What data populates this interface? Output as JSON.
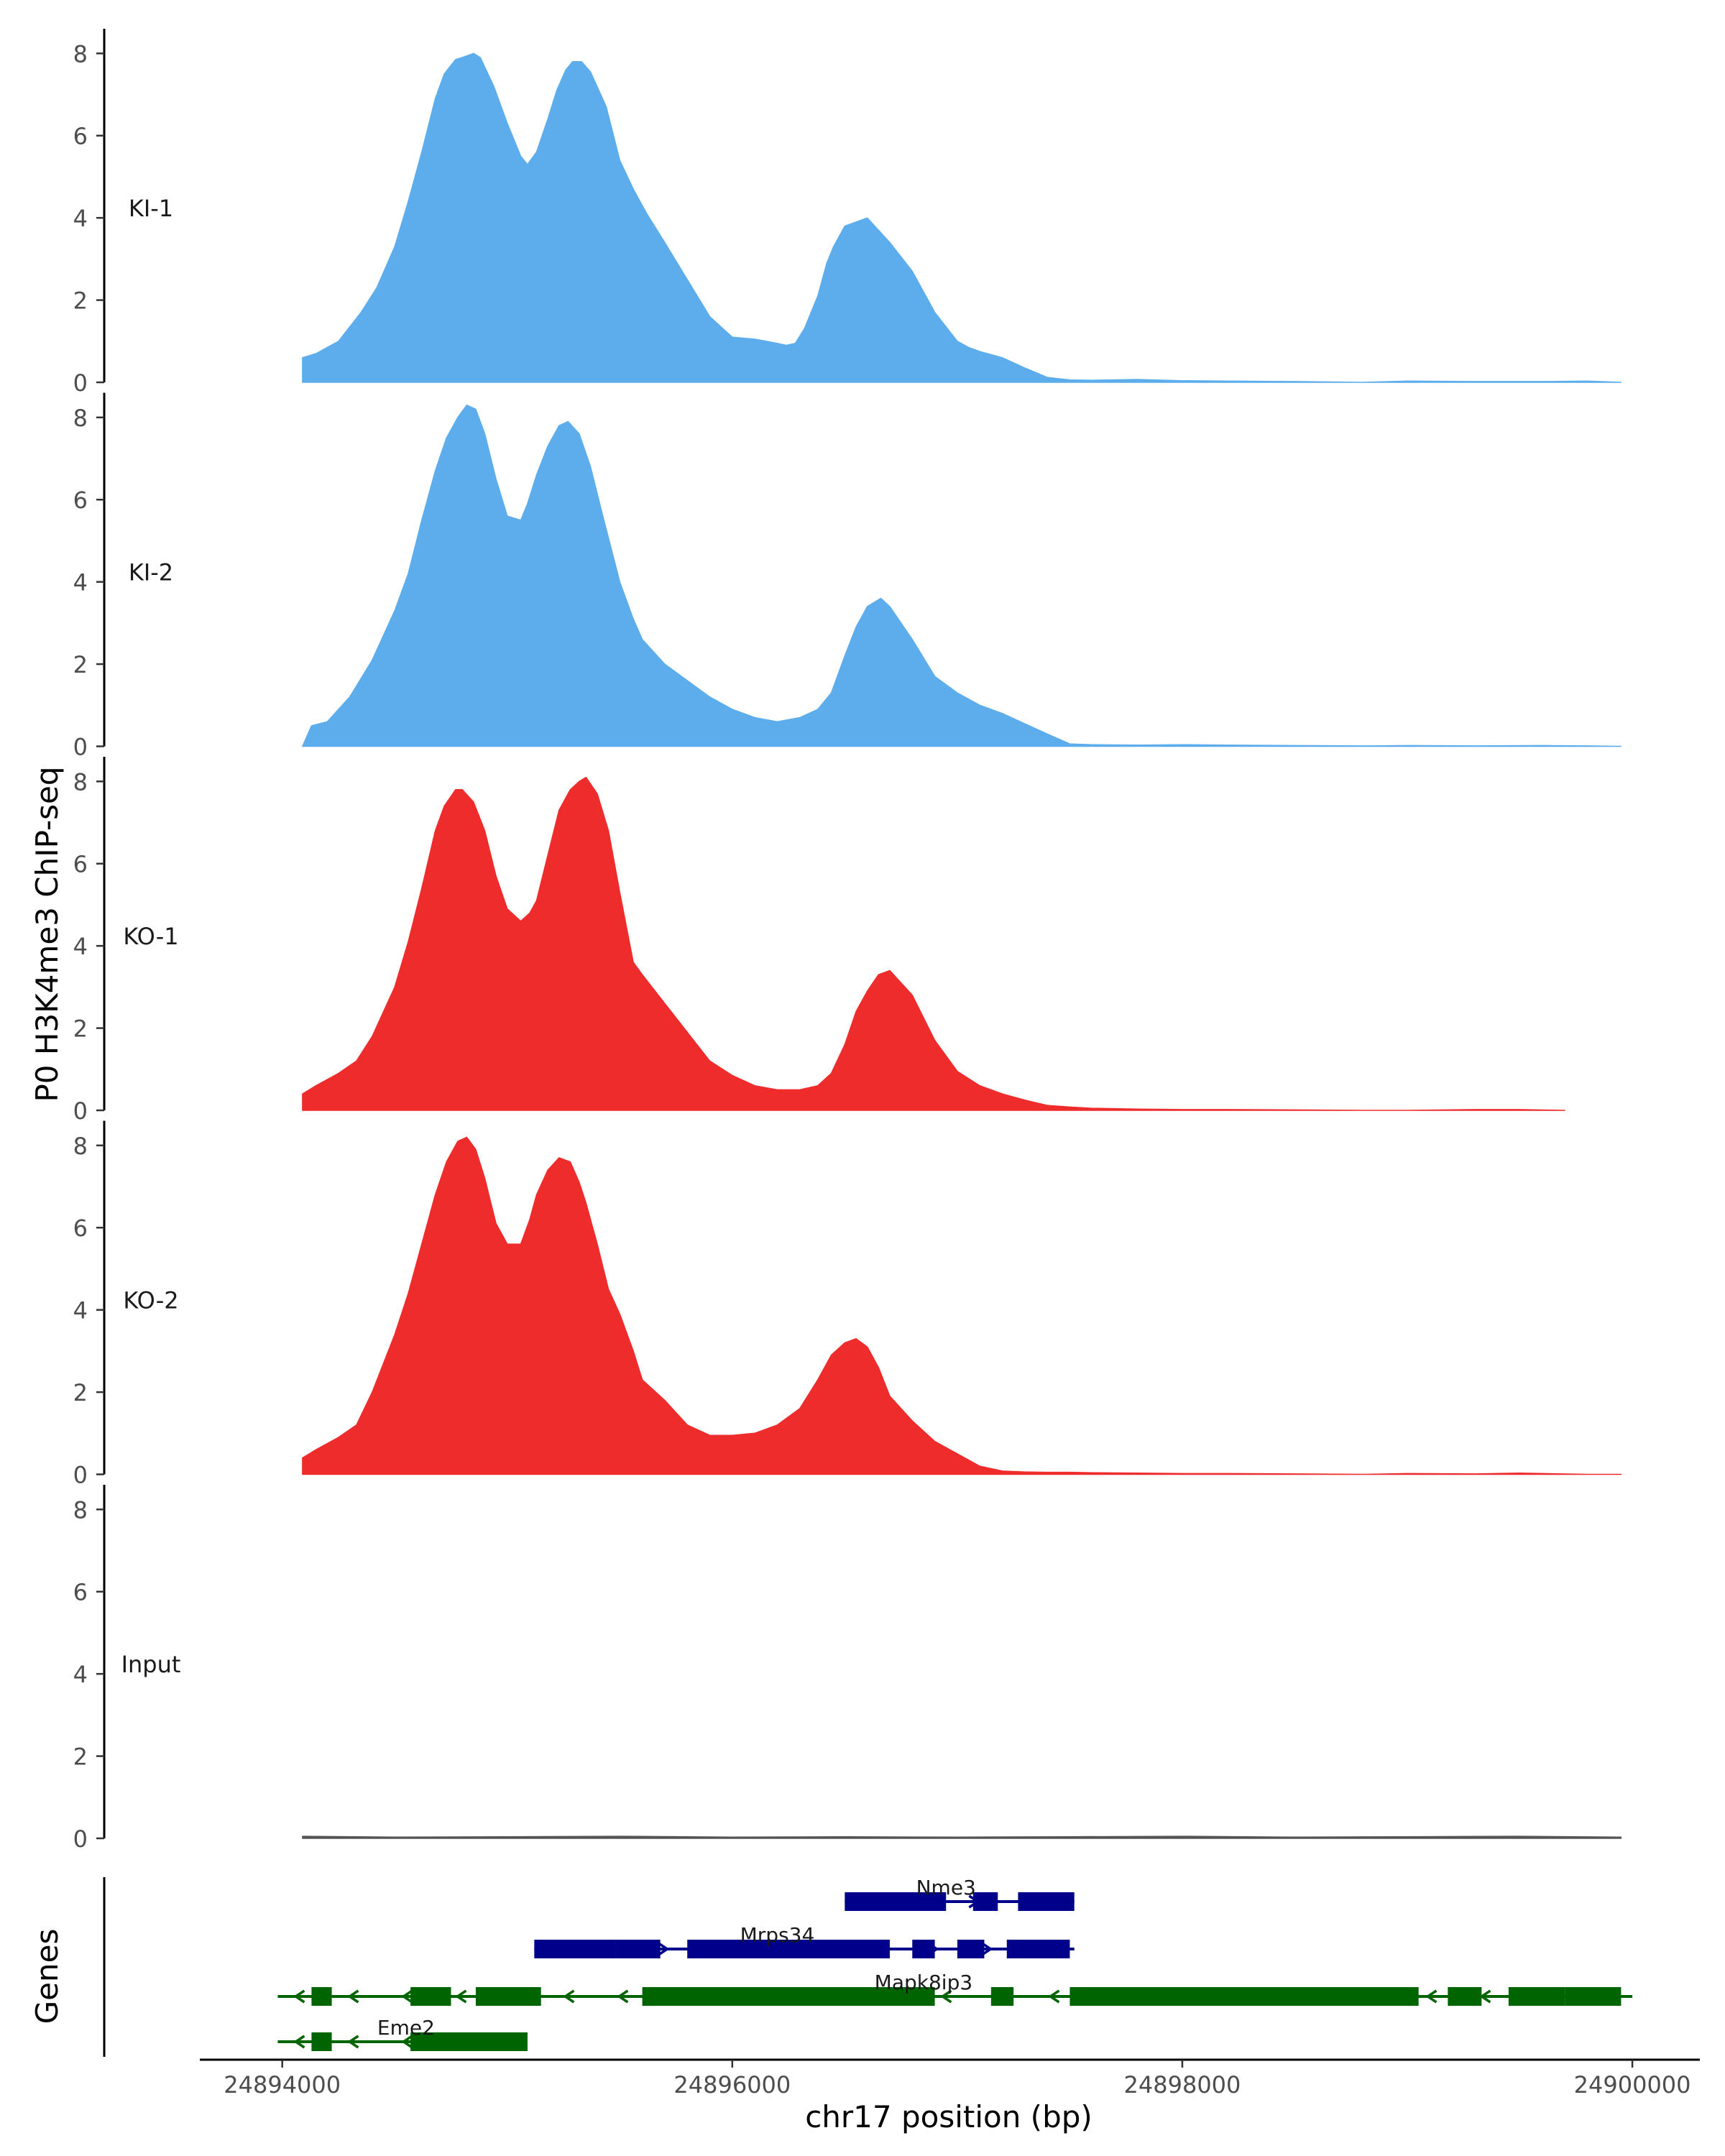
{
  "chart_data": {
    "type": "area",
    "ylabel": "P0 H3K4me3 ChIP-seq",
    "xlabel": "chr17 position (bp)",
    "ylim": [
      0,
      8.6
    ],
    "xlim": [
      24893640,
      24900300
    ],
    "yticks": [
      "0",
      "2",
      "4",
      "6",
      "8"
    ],
    "xticks": [
      {
        "value": 24894000,
        "label": "24894000"
      },
      {
        "value": 24896000,
        "label": "24896000"
      },
      {
        "value": 24898000,
        "label": "24898000"
      },
      {
        "value": 24900000,
        "label": "24900000"
      }
    ],
    "tracks": [
      {
        "name": "KI-1",
        "color": "#5DADEC",
        "x": [
          24894090,
          24894150,
          24894250,
          24894350,
          24894420,
          24894500,
          24894560,
          24894620,
          24894680,
          24894720,
          24894770,
          24894800,
          24894850,
          24894880,
          24894940,
          24895000,
          24895060,
          24895090,
          24895130,
          24895180,
          24895220,
          24895260,
          24895290,
          24895330,
          24895370,
          24895440,
          24895500,
          24895560,
          24895620,
          24895700,
          24895800,
          24895900,
          24896000,
          24896100,
          24896150,
          24896200,
          24896240,
          24896280,
          24896320,
          24896380,
          24896420,
          24896450,
          24896500,
          24896600,
          24896700,
          24896800,
          24896900,
          24897000,
          24897050,
          24897100,
          24897200,
          24897300,
          24897400,
          24897500,
          24897600,
          24897800,
          24898000,
          24898200,
          24898500,
          24898800,
          24899000,
          24899300,
          24899600,
          24899800,
          24899950
        ],
        "values": [
          0.6,
          0.7,
          1.0,
          1.7,
          2.3,
          3.3,
          4.4,
          5.6,
          6.9,
          7.5,
          7.85,
          7.9,
          8.0,
          7.9,
          7.2,
          6.3,
          5.5,
          5.3,
          5.6,
          6.4,
          7.1,
          7.6,
          7.8,
          7.8,
          7.55,
          6.7,
          5.4,
          4.7,
          4.1,
          3.4,
          2.5,
          1.6,
          1.1,
          1.05,
          1.0,
          0.95,
          0.9,
          0.95,
          1.3,
          2.1,
          2.9,
          3.3,
          3.8,
          4.0,
          3.4,
          2.7,
          1.7,
          1.0,
          0.85,
          0.75,
          0.6,
          0.35,
          0.12,
          0.06,
          0.05,
          0.07,
          0.04,
          0.03,
          0.02,
          0.0,
          0.03,
          0.02,
          0.02,
          0.03,
          0.0
        ]
      },
      {
        "name": "KI-2",
        "color": "#5DADEC",
        "x": [
          24894090,
          24894130,
          24894200,
          24894300,
          24894400,
          24894500,
          24894560,
          24894620,
          24894680,
          24894730,
          24894780,
          24894820,
          24894860,
          24894900,
          24894950,
          24895000,
          24895060,
          24895090,
          24895130,
          24895180,
          24895230,
          24895270,
          24895320,
          24895370,
          24895420,
          24895500,
          24895560,
          24895600,
          24895700,
          24895800,
          24895900,
          24896000,
          24896100,
          24896200,
          24896300,
          24896380,
          24896440,
          24896500,
          24896550,
          24896600,
          24896660,
          24896700,
          24896800,
          24896900,
          24897000,
          24897100,
          24897200,
          24897300,
          24897400,
          24897500,
          24897600,
          24897800,
          24898000,
          24898200,
          24898500,
          24898800,
          24899000,
          24899300,
          24899600,
          24899800,
          24899950
        ],
        "values": [
          0.0,
          0.5,
          0.6,
          1.2,
          2.1,
          3.3,
          4.2,
          5.5,
          6.7,
          7.5,
          8.0,
          8.3,
          8.2,
          7.6,
          6.5,
          5.6,
          5.5,
          5.9,
          6.6,
          7.3,
          7.8,
          7.9,
          7.6,
          6.8,
          5.7,
          4.0,
          3.1,
          2.6,
          2.0,
          1.6,
          1.2,
          0.9,
          0.7,
          0.6,
          0.7,
          0.9,
          1.3,
          2.2,
          2.9,
          3.4,
          3.6,
          3.4,
          2.6,
          1.7,
          1.3,
          1.0,
          0.8,
          0.55,
          0.3,
          0.06,
          0.04,
          0.03,
          0.04,
          0.03,
          0.02,
          0.01,
          0.02,
          0.01,
          0.02,
          0.01,
          0.0
        ]
      },
      {
        "name": "KO-1",
        "color": "#EE2C2C",
        "x": [
          24894090,
          24894150,
          24894250,
          24894330,
          24894400,
          24894500,
          24894560,
          24894620,
          24894680,
          24894720,
          24894770,
          24894800,
          24894850,
          24894900,
          24894950,
          24895000,
          24895060,
          24895100,
          24895130,
          24895180,
          24895230,
          24895280,
          24895320,
          24895350,
          24895400,
          24895450,
          24895500,
          24895560,
          24895600,
          24895700,
          24895800,
          24895900,
          24896000,
          24896100,
          24896200,
          24896300,
          24896380,
          24896440,
          24896500,
          24896550,
          24896600,
          24896650,
          24896700,
          24896800,
          24896900,
          24897000,
          24897100,
          24897200,
          24897300,
          24897400,
          24897500,
          24897600,
          24897800,
          24898000,
          24898200,
          24898500,
          24898800,
          24899000,
          24899300,
          24899500,
          24899700
        ],
        "values": [
          0.4,
          0.6,
          0.9,
          1.2,
          1.8,
          3.0,
          4.1,
          5.4,
          6.8,
          7.4,
          7.8,
          7.8,
          7.5,
          6.8,
          5.7,
          4.9,
          4.6,
          4.8,
          5.1,
          6.2,
          7.3,
          7.8,
          8.0,
          8.1,
          7.7,
          6.8,
          5.3,
          3.6,
          3.3,
          2.6,
          1.9,
          1.2,
          0.85,
          0.6,
          0.5,
          0.5,
          0.6,
          0.9,
          1.6,
          2.4,
          2.9,
          3.3,
          3.4,
          2.8,
          1.7,
          0.95,
          0.6,
          0.4,
          0.25,
          0.12,
          0.08,
          0.05,
          0.03,
          0.02,
          0.02,
          0.01,
          0.0,
          0.0,
          0.02,
          0.02,
          0.0
        ]
      },
      {
        "name": "KO-2",
        "color": "#EE2C2C",
        "x": [
          24894090,
          24894150,
          24894250,
          24894330,
          24894400,
          24894500,
          24894560,
          24894620,
          24894680,
          24894730,
          24894780,
          24894820,
          24894860,
          24894900,
          24894950,
          24895000,
          24895060,
          24895100,
          24895130,
          24895180,
          24895230,
          24895280,
          24895320,
          24895350,
          24895400,
          24895450,
          24895500,
          24895560,
          24895600,
          24895700,
          24895800,
          24895900,
          24896000,
          24896100,
          24896200,
          24896300,
          24896380,
          24896440,
          24896500,
          24896550,
          24896600,
          24896650,
          24896700,
          24896800,
          24896900,
          24897000,
          24897100,
          24897200,
          24897300,
          24897400,
          24897500,
          24897600,
          24897800,
          24898000,
          24898200,
          24898500,
          24898800,
          24899000,
          24899300,
          24899500,
          24899800,
          24899950
        ],
        "values": [
          0.4,
          0.6,
          0.9,
          1.2,
          2.0,
          3.4,
          4.4,
          5.6,
          6.8,
          7.6,
          8.1,
          8.2,
          7.9,
          7.2,
          6.1,
          5.6,
          5.6,
          6.2,
          6.8,
          7.4,
          7.7,
          7.6,
          7.1,
          6.6,
          5.6,
          4.5,
          3.9,
          3.0,
          2.3,
          1.8,
          1.2,
          0.95,
          0.95,
          1.0,
          1.2,
          1.6,
          2.3,
          2.9,
          3.2,
          3.3,
          3.1,
          2.6,
          1.9,
          1.3,
          0.8,
          0.5,
          0.2,
          0.08,
          0.06,
          0.05,
          0.05,
          0.04,
          0.03,
          0.02,
          0.02,
          0.01,
          0.0,
          0.02,
          0.01,
          0.03,
          0.0,
          0.0
        ]
      },
      {
        "name": "Input",
        "color": "#555555",
        "x": [
          24894090,
          24894500,
          24895000,
          24895500,
          24896000,
          24896500,
          24897000,
          24897500,
          24898000,
          24898500,
          24899000,
          24899500,
          24899950
        ],
        "values": [
          0.05,
          0.03,
          0.04,
          0.05,
          0.03,
          0.04,
          0.03,
          0.04,
          0.05,
          0.03,
          0.04,
          0.05,
          0.03
        ]
      }
    ],
    "genes_label": "Genes",
    "genes": [
      {
        "name": "Nme3",
        "color": "#00008B",
        "strand": "+",
        "start": 24896500,
        "end": 24897520,
        "exons": [
          [
            24896500,
            24896950
          ],
          [
            24897070,
            24897180
          ],
          [
            24897270,
            24897520
          ]
        ]
      },
      {
        "name": "Mrps34",
        "color": "#00008B",
        "strand": "+",
        "start": 24895120,
        "end": 24897520,
        "exons": [
          [
            24895120,
            24895480
          ],
          [
            24895480,
            24895680
          ],
          [
            24895800,
            24896700
          ],
          [
            24896800,
            24896900
          ],
          [
            24897000,
            24897120
          ],
          [
            24897220,
            24897500
          ]
        ]
      },
      {
        "name": "Mapk8ip3",
        "color": "#006400",
        "strand": "-",
        "start": 24893980,
        "end": 24900000,
        "exons": [
          [
            24894130,
            24894220
          ],
          [
            24894570,
            24894750
          ],
          [
            24894860,
            24895150
          ],
          [
            24895600,
            24896900
          ],
          [
            24897150,
            24897250
          ],
          [
            24897500,
            24899050
          ],
          [
            24899180,
            24899330
          ],
          [
            24899450,
            24899700
          ],
          [
            24899700,
            24899950
          ]
        ]
      },
      {
        "name": "Eme2",
        "color": "#006400",
        "strand": "-",
        "start": 24893980,
        "end": 24895090,
        "exons": [
          [
            24894130,
            24894220
          ],
          [
            24894570,
            24895090
          ]
        ]
      }
    ]
  }
}
